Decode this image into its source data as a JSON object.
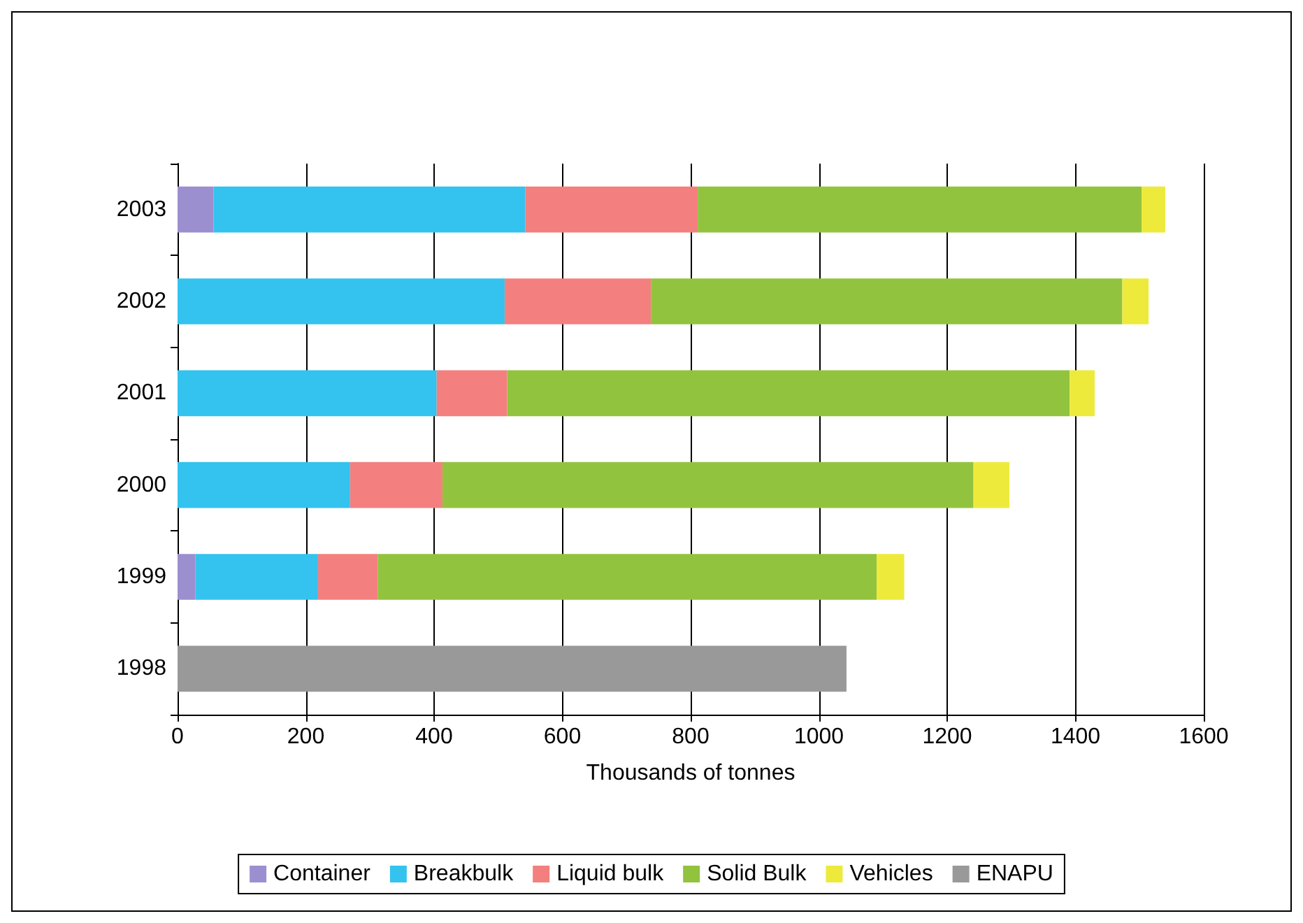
{
  "chart_data": {
    "type": "bar",
    "orientation": "horizontal",
    "stacked": true,
    "xlabel": "Thousands of tonnes",
    "categories": [
      "2003",
      "2002",
      "2001",
      "2000",
      "1999",
      "1998"
    ],
    "series": [
      {
        "name": "Container",
        "color": "#9b8fcf",
        "values": [
          56,
          null,
          null,
          null,
          28,
          null
        ]
      },
      {
        "name": "Breakbulk",
        "color": "#33c3ee",
        "values": [
          486,
          510,
          404,
          269,
          191,
          null
        ]
      },
      {
        "name": "Liquid bulk",
        "color": "#f47f7f",
        "values": [
          269,
          228,
          110,
          144,
          93,
          null
        ]
      },
      {
        "name": "Solid Bulk",
        "color": "#92c33e",
        "values": [
          692,
          735,
          877,
          828,
          778,
          null
        ]
      },
      {
        "name": "Vehicles",
        "color": "#eeea3c",
        "values": [
          37,
          41,
          39,
          56,
          43,
          null
        ]
      },
      {
        "name": "ENAPU",
        "color": "#999999",
        "values": [
          null,
          null,
          null,
          null,
          null,
          1043
        ]
      }
    ],
    "xlim": [
      0,
      1600
    ],
    "xticks": [
      0,
      200,
      400,
      600,
      800,
      1000,
      1200,
      1400,
      1600
    ],
    "grid": "x",
    "legend": "bottom"
  }
}
